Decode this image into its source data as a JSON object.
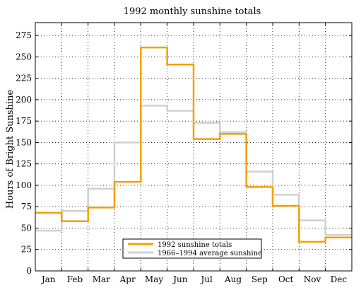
{
  "chart_data": {
    "type": "line",
    "step": true,
    "title": "1992 monthly sunshine totals",
    "xlabel": "",
    "ylabel": "Hours of Bright Sunshine",
    "categories": [
      "Jan",
      "Feb",
      "Mar",
      "Apr",
      "May",
      "Jun",
      "Jul",
      "Aug",
      "Sep",
      "Oct",
      "Nov",
      "Dec"
    ],
    "ylim": [
      0,
      290
    ],
    "yticks": [
      0,
      25,
      50,
      75,
      100,
      125,
      150,
      175,
      200,
      225,
      250,
      275
    ],
    "grid": true,
    "legend_position": "bottom-center",
    "series": [
      {
        "name": "1992 sunshine totals",
        "color": "#f4a000",
        "values": [
          68,
          58,
          74,
          104,
          261,
          241,
          154,
          160,
          98,
          76,
          34,
          39
        ]
      },
      {
        "name": "1966–1994 average sunshine",
        "color": "#d0d0d0",
        "values": [
          47,
          70,
          96,
          150,
          193,
          187,
          173,
          162,
          116,
          89,
          59,
          42
        ]
      }
    ]
  }
}
